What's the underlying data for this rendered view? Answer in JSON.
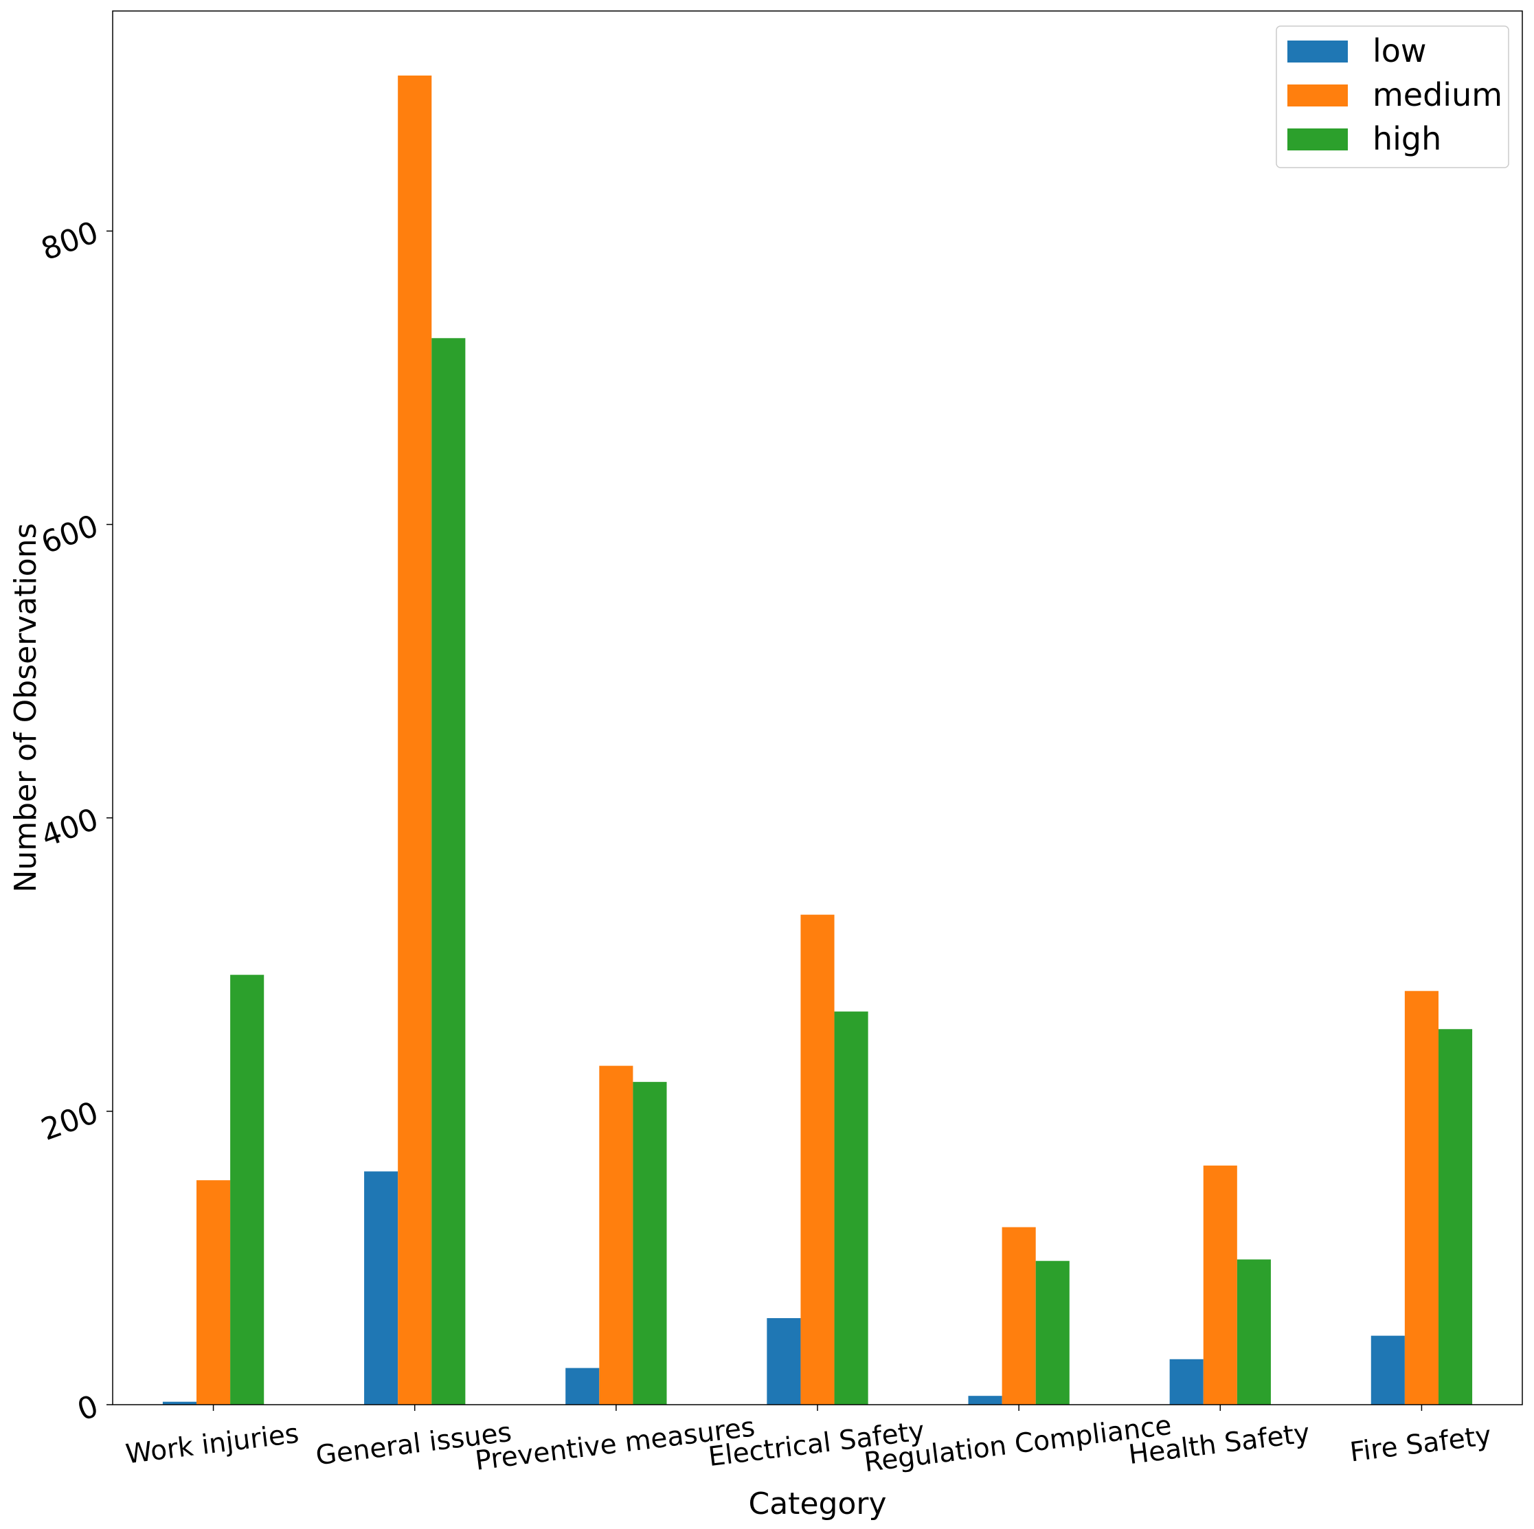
{
  "chart_data": {
    "type": "bar",
    "title": "",
    "xlabel": "Category",
    "ylabel": "Number of Observations",
    "ylim": [
      0,
      950
    ],
    "yticks": [
      0,
      200,
      400,
      600,
      800
    ],
    "categories": [
      "Work injuries",
      "General issues",
      "Preventive measures",
      "Electrical Safety",
      "Regulation Compliance",
      "Health Safety",
      "Fire Safety"
    ],
    "series": [
      {
        "name": "low",
        "color": "#1f77b4",
        "values": [
          2,
          159,
          25,
          59,
          6,
          31,
          47
        ]
      },
      {
        "name": "medium",
        "color": "#ff7f0e",
        "values": [
          153,
          906,
          231,
          334,
          121,
          163,
          282
        ]
      },
      {
        "name": "high",
        "color": "#2ca02c",
        "values": [
          293,
          727,
          220,
          268,
          98,
          99,
          256
        ]
      }
    ],
    "legend_position": "top-right",
    "grid": false
  }
}
